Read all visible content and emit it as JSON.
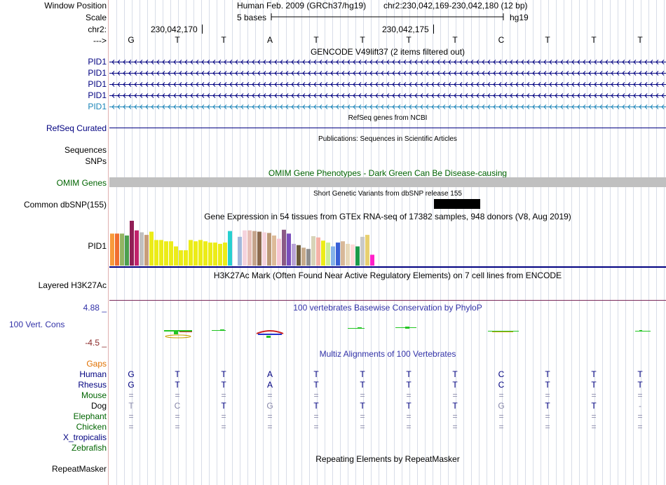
{
  "nav": {
    "window_position_label": "Window Position",
    "scale_label": "Scale",
    "chr_label": "chr2:",
    "arrow_label": "--->",
    "assembly": "Human Feb. 2009 (GRCh37/hg19)",
    "position": "chr2:230,042,169-230,042,180 (12 bp)",
    "scale_text": "5 bases",
    "db": "hg19",
    "coord1": "230,042,170",
    "coord2": "230,042,175"
  },
  "bases": [
    "G",
    "T",
    "T",
    "A",
    "T",
    "T",
    "T",
    "T",
    "C",
    "T",
    "T",
    "T"
  ],
  "tracks": {
    "gencode": {
      "title": "GENCODE V49lift37 (2 items filtered out)",
      "items": [
        "PID1",
        "PID1",
        "PID1",
        "PID1",
        "PID1"
      ]
    },
    "refseq": {
      "title": "RefSeq genes from NCBI",
      "label": "RefSeq Curated"
    },
    "pubs": {
      "title": "Publications: Sequences in Scientific Articles",
      "label1": "Sequences",
      "label2": "SNPs"
    },
    "omim": {
      "title": "OMIM Gene Phenotypes - Dark Green Can Be Disease-causing",
      "label": "OMIM Genes"
    },
    "dbsnp": {
      "title": "Short Genetic Variants from dbSNP release 155",
      "label": "Common dbSNP(155)"
    },
    "gtex": {
      "title": "Gene Expression in 54 tissues from GTEx RNA-seq of 17382 samples, 948 donors (V8, Aug 2019)",
      "label": "PID1",
      "values": [
        50,
        50,
        50,
        47,
        70,
        55,
        52,
        48,
        53,
        40,
        40,
        38,
        38,
        30,
        24,
        24,
        40,
        38,
        40,
        38,
        36,
        36,
        34,
        36,
        54,
        0,
        45,
        55,
        55,
        54,
        53,
        52,
        51,
        47,
        42,
        56,
        50,
        34,
        32,
        28,
        26,
        46,
        44,
        39,
        36,
        30,
        36,
        38,
        34,
        33,
        30,
        45,
        48,
        17
      ],
      "colors": [
        "#f89b3b",
        "#f06d2f",
        "#94b462",
        "#4c9f4e",
        "#911f56",
        "#c0226b",
        "#c0c0c0",
        "#c79d7a",
        "#ecec18",
        "#ecec18",
        "#ecec18",
        "#ecec18",
        "#ecec18",
        "#ecec18",
        "#ecec18",
        "#ecec18",
        "#ecec18",
        "#ecec18",
        "#ecec18",
        "#ecec18",
        "#ecec18",
        "#ecec18",
        "#ecec18",
        "#ecec18",
        "#27d0d0",
        "#ffffff",
        "#a2b8dc",
        "#f5d3dd",
        "#e7bfb8",
        "#c5a48c",
        "#8b6a4f",
        "#f5d3dd",
        "#bb9977",
        "#ddbb99",
        "#f7c7d5",
        "#8b5a86",
        "#7a4ebb",
        "#b9a3d6",
        "#6a5a3a",
        "#c6ab8c",
        "#8f8f8f",
        "#d8d4b8",
        "#f5b2a8",
        "#ecec18",
        "#ccee99",
        "#85b2e9",
        "#3a61d6",
        "#d8b898",
        "#e8d8b8",
        "#ffd8d8",
        "#1a9a4a",
        "#c9c9c9",
        "#e8d070",
        "#ff20c8"
      ]
    },
    "h3k27": {
      "title": "H3K27Ac Mark (Often Found Near Active Regulatory Elements) on 7 cell lines from ENCODE",
      "label": "Layered H3K27Ac"
    },
    "cons": {
      "title": "100 vertebrates Basewise Conservation by PhyloP",
      "label": "100 Vert. Cons",
      "max": "4.88 _",
      "min": "-4.5 _"
    },
    "multiz": {
      "title": "Multiz Alignments of 100 Vertebrates",
      "gaps_label": "Gaps",
      "species": [
        {
          "name": "Human",
          "bases": [
            "G",
            "T",
            "T",
            "A",
            "T",
            "T",
            "T",
            "T",
            "C",
            "T",
            "T",
            "T"
          ]
        },
        {
          "name": "Rhesus",
          "bases": [
            "G",
            "T",
            "T",
            "A",
            "T",
            "T",
            "T",
            "T",
            "C",
            "T",
            "T",
            "T"
          ]
        },
        {
          "name": "Mouse",
          "bases": [
            "=",
            "=",
            "=",
            "=",
            "=",
            "=",
            "=",
            "=",
            "=",
            "=",
            "=",
            "="
          ]
        },
        {
          "name": "Dog",
          "bases": [
            "T",
            "C",
            "T",
            "G",
            "T",
            "T",
            "T",
            "T",
            "G",
            "T",
            "T",
            "-"
          ]
        },
        {
          "name": "Elephant",
          "bases": [
            "=",
            "=",
            "=",
            "=",
            "=",
            "=",
            "=",
            "=",
            "=",
            "=",
            "=",
            "="
          ]
        },
        {
          "name": "Chicken",
          "bases": [
            "=",
            "=",
            "=",
            "=",
            "=",
            "=",
            "=",
            "=",
            "=",
            "=",
            "=",
            "="
          ]
        },
        {
          "name": "X_tropicalis",
          "bases": []
        },
        {
          "name": "Zebrafish",
          "bases": []
        }
      ]
    },
    "repeat": {
      "title": "Repeating Elements by RepeatMasker",
      "label": "RepeatMasker"
    }
  },
  "colors": {
    "navy": "#000080",
    "omim_green": "#006400",
    "phylop_blue": "#3232a8",
    "gaps_orange": "#e07000",
    "pid1_light": "#1a84b8"
  }
}
